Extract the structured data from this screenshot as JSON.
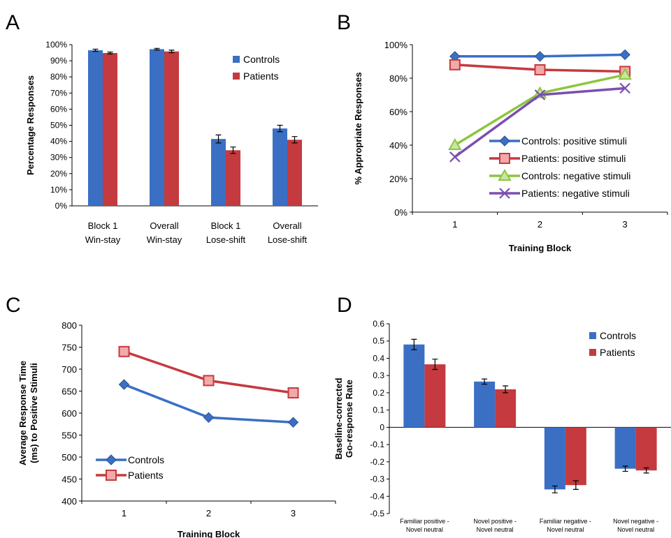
{
  "colors": {
    "controls": "#3a6fc4",
    "patients": "#c43a3f",
    "green": "#8cc63f",
    "purple": "#7b4fb0"
  },
  "chart_data": [
    {
      "panel": "A",
      "type": "bar",
      "ylabel": "Percentage Responses",
      "categories": [
        [
          "Block 1",
          "Win-stay"
        ],
        [
          "Overall",
          "Win-stay"
        ],
        [
          "Block 1",
          "Lose-shift"
        ],
        [
          "Overall",
          "Lose-shift"
        ]
      ],
      "series": [
        {
          "name": "Controls",
          "values": [
            96.5,
            97.2,
            41.5,
            48.0
          ],
          "errors": [
            0.7,
            0.5,
            2.5,
            2.0
          ]
        },
        {
          "name": "Patients",
          "values": [
            94.8,
            95.8,
            34.5,
            41.0
          ],
          "errors": [
            0.6,
            0.8,
            2.0,
            2.0
          ]
        }
      ],
      "ylim": [
        0,
        100
      ],
      "yticks": [
        "0%",
        "10%",
        "20%",
        "30%",
        "40%",
        "50%",
        "60%",
        "70%",
        "80%",
        "90%",
        "100%"
      ],
      "legend": "top-right"
    },
    {
      "panel": "B",
      "type": "line",
      "xlabel": "Training Block",
      "ylabel": "% Appropriate Responses",
      "x": [
        "1",
        "2",
        "3"
      ],
      "series": [
        {
          "name": "Controls: positive stimuli",
          "values": [
            93,
            93,
            94
          ],
          "marker": "diamond"
        },
        {
          "name": "Patients: positive stimuli",
          "values": [
            88,
            85,
            84
          ],
          "marker": "square"
        },
        {
          "name": "Controls: negative stimuli",
          "values": [
            40,
            71,
            82
          ],
          "marker": "triangle"
        },
        {
          "name": "Patients: negative stimuli",
          "values": [
            33,
            70,
            74
          ],
          "marker": "x"
        }
      ],
      "ylim": [
        0,
        100
      ],
      "yticks": [
        "0%",
        "20%",
        "40%",
        "60%",
        "80%",
        "100%"
      ],
      "legend": "bottom-right"
    },
    {
      "panel": "C",
      "type": "line",
      "xlabel": "Training Block",
      "ylabel": [
        "Average Response Time",
        "(ms) to Positive Stimuli"
      ],
      "x": [
        "1",
        "2",
        "3"
      ],
      "series": [
        {
          "name": "Controls",
          "values": [
            665,
            590,
            579
          ],
          "marker": "diamond"
        },
        {
          "name": "Patients",
          "values": [
            740,
            674,
            646
          ],
          "marker": "square"
        }
      ],
      "ylim": [
        400,
        800
      ],
      "yticks": [
        "400",
        "450",
        "500",
        "550",
        "600",
        "650",
        "700",
        "750",
        "800"
      ],
      "legend": "bottom-left"
    },
    {
      "panel": "D",
      "type": "bar",
      "ylabel": [
        "Baseline-corrected",
        "Go-response Rate"
      ],
      "categories": [
        [
          "Familiar positive -",
          "Novel neutral"
        ],
        [
          "Novel positive -",
          "Novel neutral"
        ],
        [
          "Familiar negative -",
          "Novel neutral"
        ],
        [
          "Novel negative -",
          "Novel neutral"
        ]
      ],
      "series": [
        {
          "name": "Controls",
          "values": [
            0.48,
            0.265,
            -0.36,
            -0.24
          ],
          "errors": [
            0.03,
            0.015,
            0.02,
            0.015
          ]
        },
        {
          "name": "Patients",
          "values": [
            0.365,
            0.22,
            -0.335,
            -0.25
          ],
          "errors": [
            0.03,
            0.02,
            0.025,
            0.015
          ]
        }
      ],
      "ylim": [
        -0.5,
        0.6
      ],
      "yticks": [
        "-0.5",
        "-0.4",
        "-0.3",
        "-0.2",
        "-0.1",
        "0",
        "0.1",
        "0.2",
        "0.3",
        "0.4",
        "0.5",
        "0.6"
      ],
      "legend": "top-right"
    }
  ],
  "panels": {
    "a": "A",
    "b": "B",
    "c": "C",
    "d": "D"
  }
}
